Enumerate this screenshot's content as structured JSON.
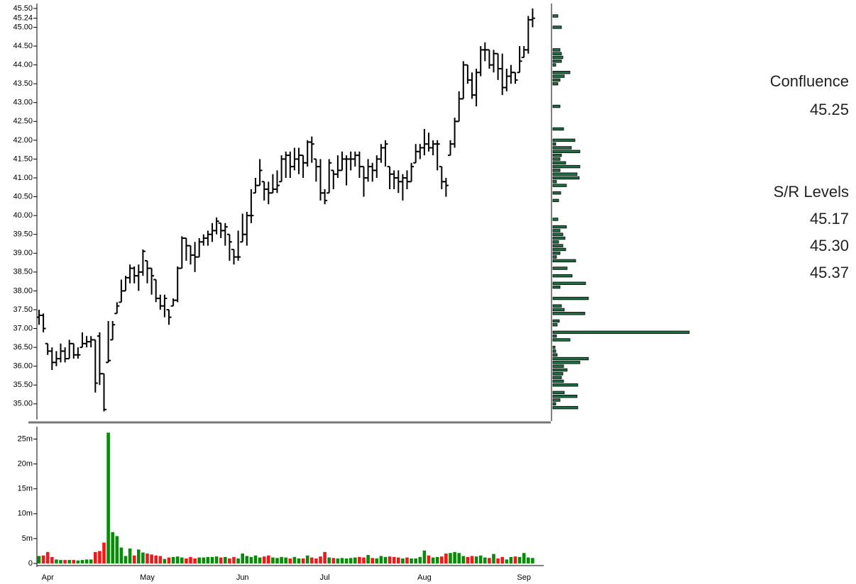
{
  "chart_data": [
    {
      "type": "ohlc",
      "categories": [
        null,
        null,
        "Apr",
        null,
        null,
        null,
        null,
        null,
        null,
        null,
        null,
        null,
        null,
        null,
        null,
        null,
        null,
        null,
        null,
        null,
        null,
        null,
        null,
        null,
        null,
        "May",
        null,
        null,
        null,
        null,
        null,
        null,
        null,
        null,
        null,
        null,
        null,
        null,
        null,
        null,
        null,
        null,
        null,
        null,
        null,
        null,
        null,
        "Jun",
        null,
        null,
        null,
        null,
        null,
        null,
        null,
        null,
        null,
        null,
        null,
        null,
        null,
        null,
        null,
        null,
        null,
        null,
        "Jul",
        null,
        null,
        null,
        null,
        null,
        null,
        null,
        null,
        null,
        null,
        null,
        null,
        null,
        null,
        null,
        null,
        null,
        null,
        null,
        null,
        null,
        null,
        "Aug",
        null,
        null,
        null,
        null,
        null,
        null,
        null,
        null,
        null,
        null,
        null,
        null,
        null,
        null,
        null,
        null,
        null,
        null,
        null,
        null,
        null,
        null,
        "Sep",
        null,
        null
      ],
      "open": [
        37.3,
        37.35,
        36.6,
        36.4,
        36.1,
        36.2,
        36.4,
        36.2,
        36.6,
        36.3,
        36.5,
        36.6,
        36.65,
        36.7,
        36.8,
        35.8,
        36.1,
        36.7,
        37.4,
        37.7,
        38.0,
        38.35,
        38.6,
        38.4,
        38.5,
        38.8,
        38.6,
        38.3,
        37.8,
        37.6,
        37.5,
        37.6,
        37.75,
        38.6,
        39.4,
        39.2,
        38.95,
        38.9,
        39.3,
        39.4,
        39.5,
        39.6,
        39.8,
        39.6,
        39.5,
        39.1,
        38.9,
        39.3,
        39.5,
        40.0,
        40.6,
        40.8,
        40.9,
        40.7,
        40.6,
        40.7,
        40.9,
        41.5,
        41.6,
        41.3,
        41.5,
        41.6,
        41.4,
        41.95,
        41.5,
        41.3,
        40.6,
        40.6,
        41.2,
        41.1,
        41.2,
        41.5,
        41.5,
        41.5,
        41.6,
        41.3,
        41.0,
        41.3,
        41.2,
        41.5,
        41.8,
        41.3,
        41.1,
        41.0,
        40.9,
        41.0,
        40.9,
        41.4,
        41.7,
        41.8,
        41.9,
        41.8,
        41.9,
        41.3,
        40.9,
        41.6,
        41.9,
        42.5,
        43.1,
        44.0,
        43.6,
        43.2,
        43.8,
        44.4,
        44.4,
        44.0,
        44.3,
        43.9,
        43.4,
        43.7,
        43.8,
        43.8,
        44.2,
        44.4,
        45.2
      ],
      "high": [
        37.5,
        37.4,
        36.6,
        36.5,
        36.4,
        36.6,
        36.5,
        36.7,
        36.6,
        36.5,
        36.9,
        36.8,
        36.8,
        36.7,
        36.9,
        35.8,
        37.2,
        37.2,
        37.7,
        38.3,
        38.4,
        38.7,
        38.65,
        38.7,
        39.1,
        38.8,
        38.6,
        38.3,
        37.9,
        37.9,
        37.5,
        37.8,
        38.65,
        39.45,
        39.4,
        39.2,
        39.3,
        39.4,
        39.5,
        39.6,
        39.8,
        39.95,
        39.8,
        39.8,
        39.5,
        39.1,
        39.6,
        40.05,
        40.1,
        40.7,
        41.0,
        41.5,
        40.9,
        40.9,
        41.1,
        41.2,
        41.6,
        41.7,
        41.7,
        41.8,
        41.8,
        41.6,
        42.0,
        42.1,
        41.5,
        41.5,
        40.7,
        41.5,
        41.2,
        41.6,
        41.7,
        41.6,
        41.7,
        41.7,
        41.7,
        41.3,
        41.5,
        41.4,
        41.6,
        41.9,
        42.0,
        41.3,
        41.2,
        41.2,
        41.1,
        41.2,
        41.4,
        41.9,
        41.9,
        42.3,
        42.2,
        42.0,
        42.0,
        41.3,
        41.0,
        42.0,
        42.6,
        43.3,
        44.1,
        44.0,
        43.8,
        43.9,
        44.5,
        44.6,
        44.4,
        44.4,
        44.3,
        44.3,
        43.9,
        44.0,
        43.8,
        44.5,
        44.5,
        45.3,
        45.5
      ],
      "low": [
        37.1,
        36.9,
        36.3,
        35.9,
        36.0,
        36.1,
        36.1,
        36.2,
        36.2,
        36.2,
        36.5,
        36.5,
        36.5,
        35.3,
        35.5,
        34.8,
        36.1,
        36.7,
        37.4,
        37.7,
        38.0,
        38.2,
        38.2,
        38.0,
        38.4,
        38.2,
        37.9,
        37.7,
        37.5,
        37.3,
        37.1,
        37.6,
        37.7,
        38.6,
        38.8,
        38.7,
        38.5,
        38.9,
        39.2,
        39.2,
        39.3,
        39.5,
        39.4,
        39.2,
        38.8,
        38.7,
        38.8,
        39.3,
        39.2,
        39.8,
        40.6,
        40.8,
        40.4,
        40.3,
        40.6,
        40.6,
        40.9,
        41.0,
        41.0,
        41.2,
        41.1,
        41.0,
        41.3,
        41.4,
        40.9,
        40.4,
        40.3,
        40.6,
        40.7,
        41.0,
        41.2,
        40.8,
        41.2,
        41.3,
        41.0,
        40.5,
        40.9,
        40.9,
        41.0,
        41.4,
        41.3,
        40.7,
        40.7,
        40.6,
        40.4,
        40.7,
        40.9,
        41.4,
        41.5,
        41.6,
        41.7,
        41.6,
        41.2,
        40.7,
        40.5,
        41.6,
        41.8,
        42.5,
        43.1,
        43.5,
        43.1,
        42.9,
        43.7,
        44.1,
        43.9,
        43.8,
        43.6,
        43.2,
        43.3,
        43.5,
        43.5,
        43.8,
        44.2,
        44.3,
        45.0
      ],
      "close": [
        37.35,
        37.0,
        36.4,
        36.1,
        36.2,
        36.4,
        36.2,
        36.6,
        36.3,
        36.3,
        36.6,
        36.65,
        36.7,
        35.55,
        35.8,
        34.85,
        36.15,
        37.1,
        37.6,
        38.0,
        38.35,
        38.6,
        38.4,
        38.5,
        39.05,
        38.6,
        38.4,
        37.8,
        37.6,
        37.8,
        37.3,
        37.75,
        38.6,
        39.4,
        39.2,
        38.95,
        38.9,
        39.3,
        39.4,
        39.5,
        39.6,
        39.85,
        39.6,
        39.7,
        39.3,
        38.9,
        38.9,
        39.5,
        40.0,
        40.0,
        40.8,
        41.2,
        40.7,
        40.6,
        40.7,
        40.8,
        41.5,
        41.6,
        41.3,
        41.5,
        41.6,
        41.4,
        41.95,
        41.9,
        41.3,
        40.6,
        40.4,
        41.4,
        41.1,
        41.2,
        41.5,
        41.5,
        41.5,
        41.6,
        41.3,
        41.0,
        41.3,
        41.2,
        41.5,
        41.8,
        41.9,
        41.1,
        41.0,
        40.9,
        41.0,
        40.9,
        41.3,
        41.7,
        41.8,
        41.9,
        41.8,
        41.9,
        41.9,
        40.9,
        40.8,
        41.9,
        42.5,
        43.1,
        44.0,
        43.6,
        43.2,
        43.8,
        44.4,
        44.4,
        44.0,
        44.3,
        43.9,
        43.4,
        43.7,
        43.8,
        43.6,
        44.1,
        44.4,
        45.2,
        45.24
      ],
      "color": "#000000",
      "ylim": [
        34.62,
        45.63
      ],
      "yticks": [
        {
          "value": 35,
          "label": "35.00"
        },
        {
          "value": 35.5,
          "label": "35.50"
        },
        {
          "value": 36,
          "label": "36.00"
        },
        {
          "value": 36.5,
          "label": "36.50"
        },
        {
          "value": 37,
          "label": "37.00"
        },
        {
          "value": 37.5,
          "label": "37.50"
        },
        {
          "value": 38,
          "label": "38.00"
        },
        {
          "value": 38.5,
          "label": "38.50"
        },
        {
          "value": 39,
          "label": "39.00"
        },
        {
          "value": 39.5,
          "label": "39.50"
        },
        {
          "value": 40,
          "label": "40.00"
        },
        {
          "value": 40.5,
          "label": "40.50"
        },
        {
          "value": 41,
          "label": "41.00"
        },
        {
          "value": 41.5,
          "label": "41.50"
        },
        {
          "value": 42,
          "label": "42.00"
        },
        {
          "value": 42.5,
          "label": "42.50"
        },
        {
          "value": 43,
          "label": "43.00"
        },
        {
          "value": 43.5,
          "label": "43.50"
        },
        {
          "value": 44,
          "label": "44.00"
        },
        {
          "value": 44.5,
          "label": "44.50"
        },
        {
          "value": 45,
          "label": "45.00"
        },
        45.24,
        {
          "value": 45.5,
          "label": "45.50"
        }
      ],
      "volume_profile": {
        "y": [
          45.3,
          45.0,
          44.4,
          44.3,
          44.2,
          44.1,
          44.0,
          43.8,
          43.7,
          43.6,
          43.5,
          42.9,
          42.3,
          42.0,
          41.9,
          41.8,
          41.7,
          41.6,
          41.5,
          41.4,
          41.3,
          41.2,
          41.1,
          41.0,
          40.9,
          40.8,
          40.6,
          40.4,
          39.9,
          39.7,
          39.6,
          39.5,
          39.4,
          39.3,
          39.2,
          39.1,
          39.0,
          38.9,
          38.8,
          38.6,
          38.4,
          38.2,
          38.1,
          37.8,
          37.6,
          37.5,
          37.4,
          37.2,
          37.1,
          36.9,
          36.8,
          36.7,
          36.5,
          36.4,
          36.3,
          36.2,
          36.1,
          36.0,
          35.9,
          35.8,
          35.7,
          35.6,
          35.5,
          35.3,
          35.2,
          35.1,
          35.0,
          34.9
        ],
        "values": [
          7,
          12,
          10,
          12,
          14,
          12,
          4,
          24,
          16,
          10,
          7,
          10,
          15,
          31,
          4,
          26,
          38,
          12,
          10,
          18,
          38,
          10,
          34,
          37,
          5,
          19,
          11,
          8,
          7,
          19,
          10,
          14,
          17,
          8,
          14,
          18,
          10,
          5,
          32,
          20,
          27,
          46,
          10,
          50,
          12,
          16,
          45,
          9,
          6,
          192,
          5,
          24,
          3,
          4,
          6,
          50,
          38,
          15,
          20,
          14,
          12,
          15,
          35,
          16,
          34,
          10,
          4,
          35
        ],
        "xlim": [
          0,
          200
        ],
        "color": "#1f6e43"
      }
    },
    {
      "type": "bar",
      "values": [
        1500000,
        1600000,
        2300000,
        1300000,
        800000,
        700000,
        700000,
        700000,
        700000,
        600000,
        700000,
        800000,
        800000,
        2300000,
        2500000,
        4200000,
        26300000,
        6300000,
        5500000,
        3200000,
        1500000,
        3000000,
        1600000,
        2800000,
        2200000,
        2000000,
        1800000,
        1600000,
        1500000,
        900000,
        1200000,
        1300000,
        1400000,
        1200000,
        1000000,
        1300000,
        1000000,
        1200000,
        1200000,
        1300000,
        1300000,
        1400000,
        1200000,
        1300000,
        1000000,
        1300000,
        1000000,
        2000000,
        1500000,
        1300000,
        1600000,
        1200000,
        1400000,
        1600000,
        1200000,
        1100000,
        1300000,
        1200000,
        1000000,
        1300000,
        1000000,
        1000000,
        1600000,
        1200000,
        1000000,
        1400000,
        2300000,
        1200000,
        1100000,
        1000000,
        1100000,
        1000000,
        1100000,
        1200000,
        1300000,
        1200000,
        1700000,
        1100000,
        1000000,
        1500000,
        1300000,
        1400000,
        1300000,
        1200000,
        1000000,
        1200000,
        1000000,
        1000000,
        1300000,
        2600000,
        1600000,
        1200000,
        1300000,
        1400000,
        2000000,
        2100000,
        2300000,
        2100000,
        1500000,
        1300000,
        1500000,
        1400000,
        1600000,
        1200000,
        1100000,
        1900000,
        1000000,
        1300000,
        800000,
        1300000,
        1400000,
        1300000,
        2100000,
        1200000,
        1100000
      ],
      "up_color": "#0a8a0a",
      "down_color": "#f01818",
      "ylim": [
        0,
        27500000
      ],
      "yticks": [
        0,
        {
          "value": 5000000,
          "label": "5m"
        },
        {
          "value": 10000000,
          "label": "10m"
        },
        {
          "value": 15000000,
          "label": "15m"
        },
        {
          "value": 20000000,
          "label": "20m"
        },
        {
          "value": 25000000,
          "label": "25m"
        }
      ]
    }
  ],
  "panel": {
    "confluence": {
      "title": "Confluence",
      "value": "45.25"
    },
    "sr_levels": {
      "title": "S/R Levels",
      "values": [
        "45.17",
        "45.30",
        "45.37"
      ]
    }
  }
}
